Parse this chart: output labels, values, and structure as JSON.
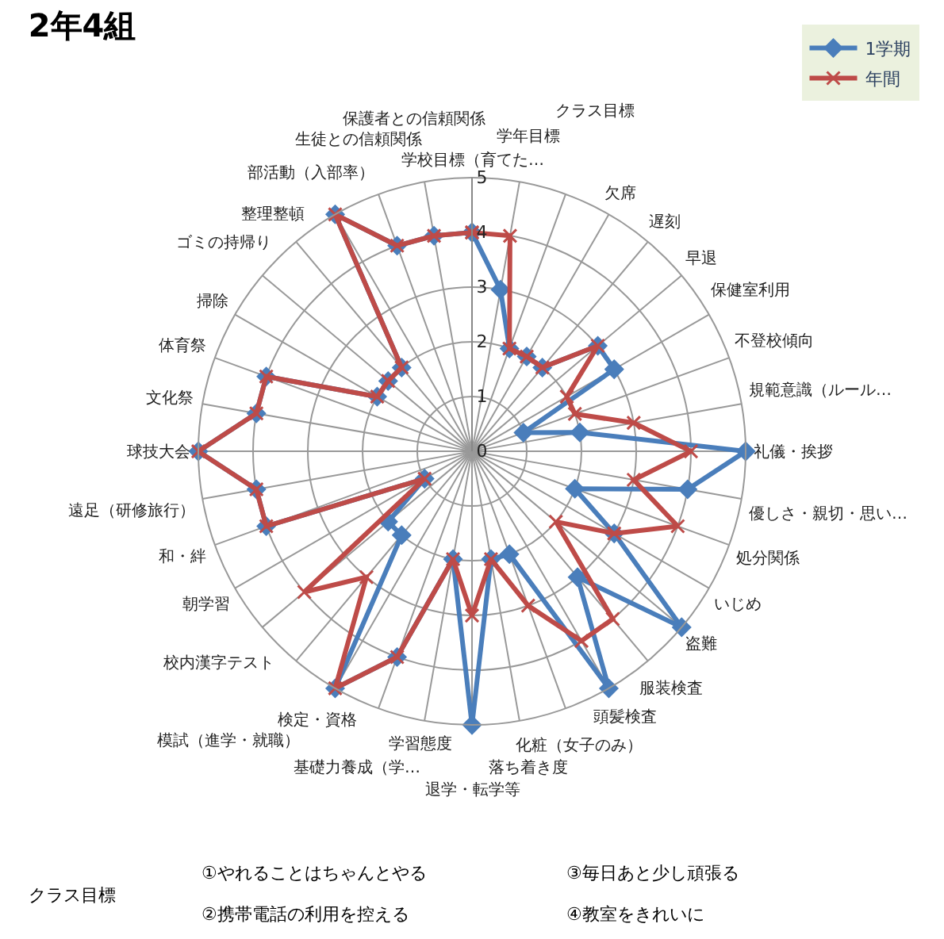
{
  "chart_data": {
    "type": "radar",
    "title": "2年4組",
    "categories": [
      "学校目標（育てた…",
      "学年目標",
      "クラス目標",
      "欠席",
      "遅刻",
      "早退",
      "保健室利用",
      "不登校傾向",
      "規範意識（ルール…",
      "礼儀・挨拶",
      "優しさ・親切・思い…",
      "処分関係",
      "いじめ",
      "盗難",
      "服装検査",
      "頭髪検査",
      "化粧（女子のみ）",
      "落ち着き度",
      "退学・転学等",
      "学習態度",
      "基礎力養成（学…",
      "検定・資格",
      "模試（進学・就職）",
      "校内漢字テスト",
      "朝学習",
      "和・絆",
      "遠足（研修旅行）",
      "球技大会",
      "文化祭",
      "体育祭",
      "掃除",
      "ゴミの持帰り",
      "整理整頓",
      "部活動（入部率）",
      "生徒との信頼関係",
      "保護者との信頼関係"
    ],
    "series": [
      {
        "name": "1学期",
        "color": "#4a7ebb",
        "marker": "diamond",
        "values": [
          4,
          3,
          2,
          2,
          2,
          3,
          3,
          1,
          2,
          5,
          4,
          2,
          3,
          5,
          3,
          5,
          2,
          2,
          5,
          2,
          4,
          5,
          2,
          2,
          1,
          4,
          4,
          5,
          4,
          4,
          2,
          2,
          2,
          5,
          4,
          4
        ]
      },
      {
        "name": "年間",
        "color": "#be4b48",
        "marker": "cross",
        "values": [
          4,
          4,
          2,
          2,
          2,
          3,
          2,
          2,
          3,
          4,
          3,
          4,
          3,
          2,
          4,
          4,
          3,
          2,
          3,
          2,
          4,
          5,
          3,
          4,
          1,
          4,
          4,
          5,
          4,
          4,
          2,
          2,
          2,
          5,
          4,
          4
        ]
      }
    ],
    "ylim": [
      0,
      5
    ],
    "yticks": [
      0,
      1,
      2,
      3,
      4,
      5
    ],
    "grid": true,
    "legend": "top right",
    "line_style": "solid",
    "annotations": [
      "クラス目標",
      "①やれることはちゃんとやる",
      "②携帯電話の利用を控える",
      "③毎日あと少し頑張る",
      "④教室をきれいに"
    ]
  }
}
